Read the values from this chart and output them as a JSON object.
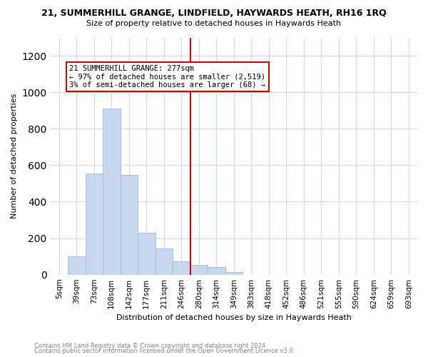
{
  "title": "21, SUMMERHILL GRANGE, LINDFIELD, HAYWARDS HEATH, RH16 1RQ",
  "subtitle": "Size of property relative to detached houses in Haywards Heath",
  "xlabel": "Distribution of detached houses by size in Haywards Heath",
  "ylabel": "Number of detached properties",
  "footnote1": "Contains HM Land Registry data © Crown copyright and database right 2024.",
  "footnote2": "Contains public sector information licensed under the Open Government Licence v3.0.",
  "annotation_line1": "21 SUMMERHILL GRANGE: 277sqm",
  "annotation_line2": "← 97% of detached houses are smaller (2,519)",
  "annotation_line3": "3% of semi-detached houses are larger (68) →",
  "bar_color": "#c8d8ec",
  "bar_edge_color": "#a0bcd4",
  "vline_color": "#cc0000",
  "annotation_box_edgecolor": "#cc0000",
  "background_color": "#ffffff",
  "grid_color": "#d0dae4",
  "categories": [
    "5sqm",
    "39sqm",
    "73sqm",
    "108sqm",
    "142sqm",
    "177sqm",
    "211sqm",
    "246sqm",
    "280sqm",
    "314sqm",
    "349sqm",
    "383sqm",
    "418sqm",
    "452sqm",
    "486sqm",
    "521sqm",
    "555sqm",
    "590sqm",
    "624sqm",
    "659sqm",
    "693sqm"
  ],
  "values": [
    0,
    100,
    555,
    910,
    545,
    230,
    145,
    75,
    55,
    40,
    15,
    0,
    0,
    0,
    0,
    0,
    0,
    0,
    0,
    0,
    0
  ],
  "vline_x": 7.5,
  "ylim": [
    0,
    1300
  ],
  "yticks": [
    0,
    200,
    400,
    600,
    800,
    1000,
    1200
  ],
  "title_fontsize": 9,
  "subtitle_fontsize": 8,
  "ylabel_fontsize": 8,
  "xlabel_fontsize": 8,
  "tick_fontsize": 7.5,
  "annot_fontsize": 7.5,
  "footnote_fontsize": 6
}
